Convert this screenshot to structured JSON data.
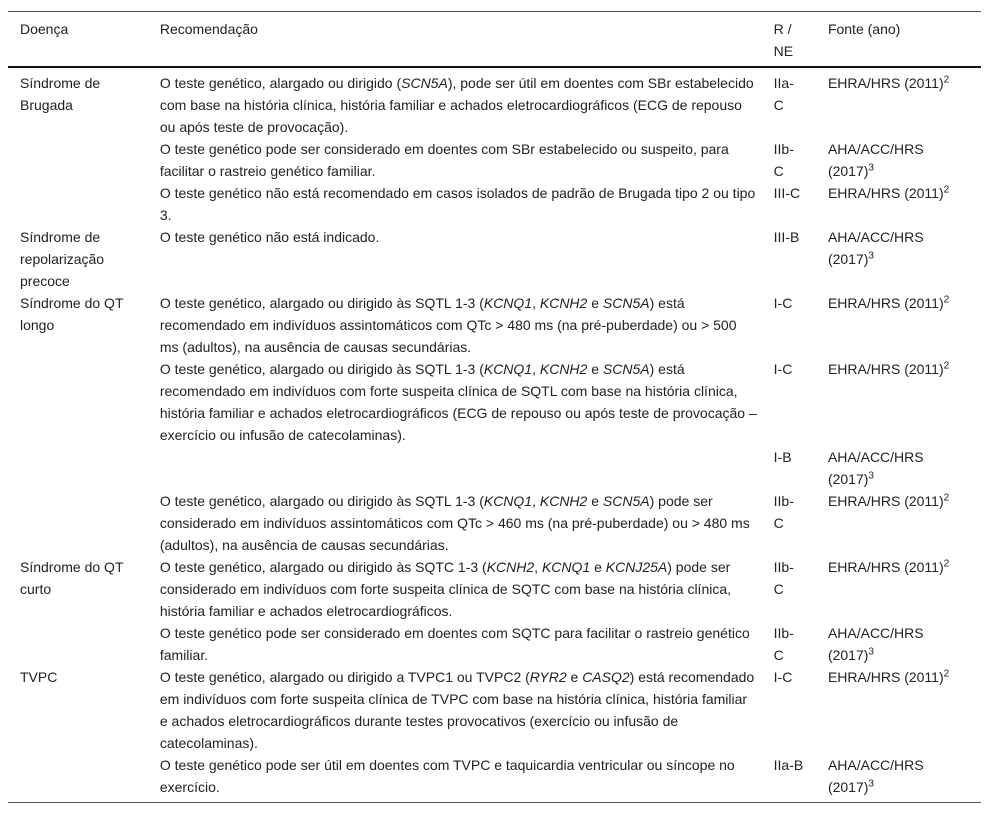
{
  "headers": {
    "disease": "Doença",
    "recommendation": "Recomendação",
    "level": "R / NE",
    "source": "Fonte (ano)"
  },
  "groups": [
    {
      "disease": "Síndrome de Brugada",
      "rows": [
        {
          "rec": [
            {
              "t": "O teste genético, alargado ou dirigido ("
            },
            {
              "t": "SCN5A",
              "i": true
            },
            {
              "t": "), pode ser útil em doentes com SBr estabelecido com base na história clínica, história familiar e achados eletrocardiográficos (ECG de repouso ou após teste de provocação)."
            }
          ],
          "level": "IIa-C",
          "source": "EHRA/HRS",
          "year": "(2011)",
          "ref": "2"
        },
        {
          "rec": [
            {
              "t": "O teste genético pode ser considerado em doentes com SBr estabelecido ou suspeito, para facilitar o rastreio genético familiar."
            }
          ],
          "level": "IIb-C",
          "source": "AHA/ACC/HRS",
          "year": "(2017)",
          "ref": "3"
        },
        {
          "rec": [
            {
              "t": "O teste genético não está recomendado em casos isolados de padrão de Brugada tipo 2 ou tipo 3."
            }
          ],
          "level": "III-C",
          "source": "EHRA/HRS",
          "year": "(2011)",
          "ref": "2"
        }
      ]
    },
    {
      "disease": "Síndrome de repolarização precoce",
      "rows": [
        {
          "rec": [
            {
              "t": "O teste genético não está indicado."
            }
          ],
          "level": "III-B",
          "source": "AHA/ACC/HRS",
          "year": "(2017)",
          "ref": "3"
        }
      ]
    },
    {
      "disease": "Síndrome do QT longo",
      "rows": [
        {
          "rec": [
            {
              "t": "O teste genético, alargado ou dirigido às SQTL 1-3 ("
            },
            {
              "t": "KCNQ1",
              "i": true
            },
            {
              "t": ", "
            },
            {
              "t": "KCNH2",
              "i": true
            },
            {
              "t": " e "
            },
            {
              "t": "SCN5A",
              "i": true
            },
            {
              "t": ") está recomendado em indivíduos assintomáticos com QTc > 480     ms (na pré-puberdade) ou > 500     ms (adultos), na ausência de causas secundárias."
            }
          ],
          "level": "I-C",
          "source": "EHRA/HRS",
          "year": "(2011)",
          "ref": "2"
        },
        {
          "rec": [
            {
              "t": "O teste genético, alargado ou dirigido às SQTL 1-3 ("
            },
            {
              "t": "KCNQ1",
              "i": true
            },
            {
              "t": ", "
            },
            {
              "t": "KCNH2",
              "i": true
            },
            {
              "t": " e "
            },
            {
              "t": "SCN5A",
              "i": true
            },
            {
              "t": ") está recomendado em indivíduos com forte suspeita clínica de SQTL com base na história clínica, história familiar e achados eletrocardiográficos (ECG de repouso ou após teste de provocação – exercício ou infusão de catecolaminas)."
            }
          ],
          "level": "I-C",
          "source": "EHRA/HRS",
          "year": "(2011)",
          "ref": "2"
        },
        {
          "rec": [],
          "level": "I-B",
          "source": "AHA/ACC/HRS",
          "year": "(2017)",
          "ref": "3"
        },
        {
          "rec": [
            {
              "t": "O teste genético, alargado ou dirigido às SQTL 1-3 ("
            },
            {
              "t": "KCNQ1",
              "i": true
            },
            {
              "t": ", "
            },
            {
              "t": "KCNH2",
              "i": true
            },
            {
              "t": " e "
            },
            {
              "t": "SCN5A",
              "i": true
            },
            {
              "t": ") pode ser considerado em indivíduos assintomáticos com QTc > 460     ms (na pré-puberdade) ou > 480     ms (adultos), na ausência de causas secundárias."
            }
          ],
          "level": "IIb-C",
          "source": "EHRA/HRS",
          "year": "(2011)",
          "ref": "2"
        }
      ]
    },
    {
      "disease": "Síndrome do QT curto",
      "rows": [
        {
          "rec": [
            {
              "t": "O teste genético, alargado ou dirigido às SQTC 1-3 ("
            },
            {
              "t": "KCNH2",
              "i": true
            },
            {
              "t": ", "
            },
            {
              "t": "KCNQ1",
              "i": true
            },
            {
              "t": " e "
            },
            {
              "t": "KCNJ25A",
              "i": true
            },
            {
              "t": ") pode ser considerado em indivíduos com forte suspeita clínica de SQTC com base na história clínica, história familiar e achados eletrocardiográficos."
            }
          ],
          "level": "IIb-C",
          "source": "EHRA/HRS",
          "year": "(2011)",
          "ref": "2"
        },
        {
          "rec": [
            {
              "t": "O teste genético pode ser considerado em doentes com SQTC para facilitar o rastreio genético familiar."
            }
          ],
          "level": "IIb-C",
          "source": "AHA/ACC/HRS",
          "year": "(2017)",
          "ref": "3"
        }
      ]
    },
    {
      "disease": "TVPC",
      "rows": [
        {
          "rec": [
            {
              "t": "O teste genético, alargado ou dirigido a TVPC1 ou TVPC2 ("
            },
            {
              "t": "RYR2",
              "i": true
            },
            {
              "t": " e "
            },
            {
              "t": "CASQ2",
              "i": true
            },
            {
              "t": ") está recomendado em indivíduos com forte suspeita clínica de TVPC com base na história clínica, história familiar e achados eletrocardiográficos durante testes provocativos (exercício ou infusão de catecolaminas)."
            }
          ],
          "level": "I-C",
          "source": "EHRA/HRS",
          "year": "(2011)",
          "ref": "2"
        },
        {
          "rec": [
            {
              "t": "O teste genético pode ser útil em doentes com TVPC e taquicardia ventricular ou síncope no exercício."
            }
          ],
          "level": "IIa-B",
          "source": "AHA/ACC/HRS",
          "year": "(2017)",
          "ref": "3"
        }
      ]
    }
  ]
}
